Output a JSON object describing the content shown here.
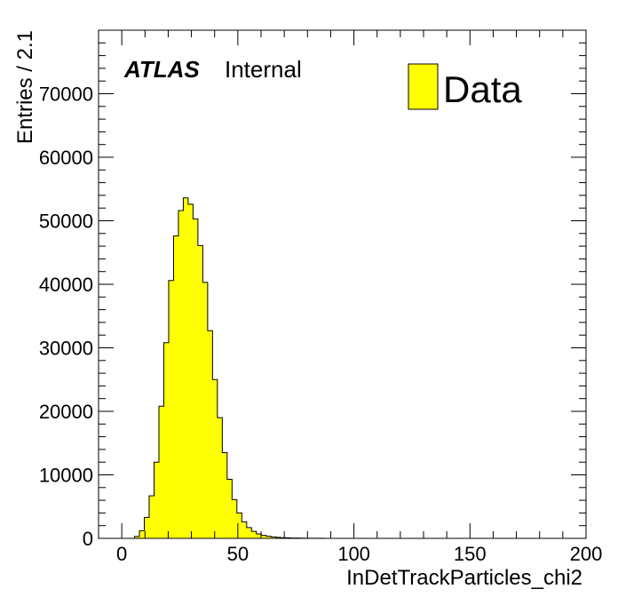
{
  "chart_data": {
    "type": "bar",
    "xlabel": "InDetTrackParticles_chi2",
    "ylabel": "Entries / 2.1",
    "xlim": [
      -10,
      200
    ],
    "ylim": [
      0,
      80000
    ],
    "x_ticks": [
      0,
      50,
      100,
      150,
      200
    ],
    "y_ticks": [
      0,
      10000,
      20000,
      30000,
      40000,
      50000,
      60000,
      70000
    ],
    "bin_width": 2.1,
    "bin_start": 5.5,
    "series": [
      {
        "name": "Data",
        "color": "#ffff00",
        "values": [
          300,
          1200,
          3300,
          6700,
          12000,
          20800,
          30800,
          40600,
          47600,
          51600,
          53600,
          52600,
          50300,
          46100,
          40300,
          32700,
          25000,
          19000,
          13500,
          9300,
          6100,
          4000,
          2600,
          1700,
          1100,
          700,
          480,
          330,
          230,
          160,
          110,
          80,
          60,
          45,
          35,
          25,
          18,
          13,
          10,
          7,
          5,
          4,
          3,
          2,
          2
        ]
      }
    ],
    "legend": "top-right",
    "grid": false
  },
  "labels": {
    "atlas": "ATLAS",
    "internal": "Internal",
    "legend_entry": "Data"
  }
}
